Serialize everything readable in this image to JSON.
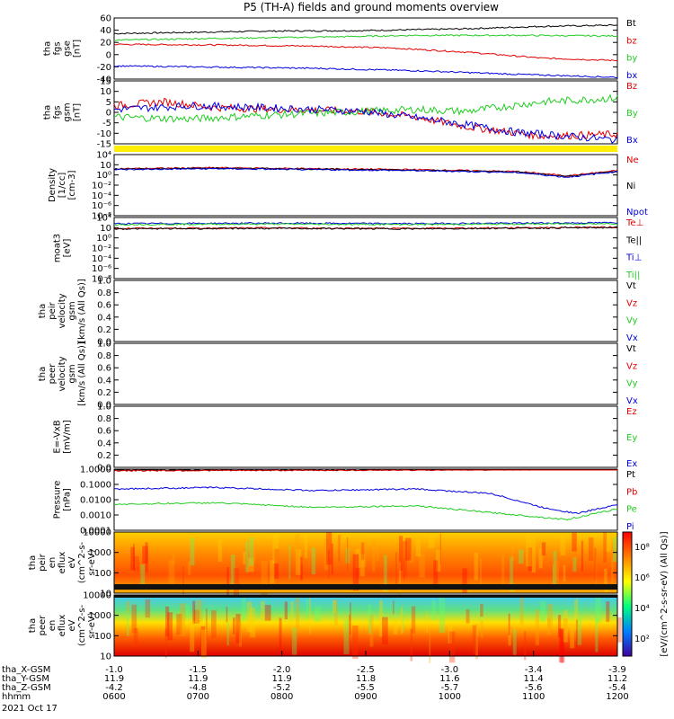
{
  "title": "P5 (TH-A) fields and ground moments overview",
  "colors": {
    "black": "#000000",
    "red": "#e00000",
    "green": "#22cc22",
    "blue": "#0000dd",
    "yellow": "#ffee00"
  },
  "chart_data": [
    {
      "type": "line",
      "panel": "fgs-gse",
      "ylabel": [
        "tha",
        "fgs",
        "gse",
        "[nT]"
      ],
      "yticks": [
        60,
        40,
        20,
        0,
        -20,
        -40
      ],
      "ylim": [
        -40,
        62
      ],
      "series": [
        {
          "name": "Bt",
          "color": "black",
          "points": [
            [
              0,
              36
            ],
            [
              0.15,
              38
            ],
            [
              0.3,
              40
            ],
            [
              0.5,
              41
            ],
            [
              0.7,
              44
            ],
            [
              0.85,
              48
            ],
            [
              1,
              50
            ]
          ]
        },
        {
          "name": "bz",
          "color": "red",
          "points": [
            [
              0,
              18
            ],
            [
              0.2,
              17
            ],
            [
              0.4,
              15
            ],
            [
              0.55,
              12
            ],
            [
              0.7,
              5
            ],
            [
              0.85,
              -5
            ],
            [
              1,
              -9
            ]
          ]
        },
        {
          "name": "by",
          "color": "green",
          "points": [
            [
              0,
              25
            ],
            [
              0.2,
              28
            ],
            [
              0.4,
              30
            ],
            [
              0.6,
              33
            ],
            [
              0.8,
              33
            ],
            [
              1,
              32
            ]
          ]
        },
        {
          "name": "bx",
          "color": "blue",
          "points": [
            [
              0,
              -18
            ],
            [
              0.2,
              -20
            ],
            [
              0.4,
              -22
            ],
            [
              0.6,
              -26
            ],
            [
              0.8,
              -32
            ],
            [
              1,
              -37
            ]
          ]
        }
      ]
    },
    {
      "type": "line",
      "panel": "fgs-gsm",
      "ylabel": [
        "tha",
        "fgs",
        "gsm",
        "[nT]"
      ],
      "yticks": [
        15,
        10,
        5,
        0,
        -5,
        -10,
        -15
      ],
      "ylim": [
        -17,
        16
      ],
      "series": [
        {
          "name": "Bz",
          "color": "red",
          "points": [
            [
              0,
              3
            ],
            [
              0.1,
              5
            ],
            [
              0.2,
              2
            ],
            [
              0.35,
              1
            ],
            [
              0.5,
              0
            ],
            [
              0.6,
              -3
            ],
            [
              0.7,
              -8
            ],
            [
              0.85,
              -13
            ],
            [
              1,
              -12
            ]
          ]
        },
        {
          "name": "By",
          "color": "green",
          "points": [
            [
              0,
              -3
            ],
            [
              0.15,
              -4
            ],
            [
              0.3,
              -2
            ],
            [
              0.5,
              0
            ],
            [
              0.6,
              1
            ],
            [
              0.7,
              0
            ],
            [
              0.85,
              5
            ],
            [
              1,
              7
            ]
          ]
        },
        {
          "name": "Bx",
          "color": "blue",
          "points": [
            [
              0,
              1
            ],
            [
              0.15,
              3
            ],
            [
              0.3,
              2
            ],
            [
              0.5,
              0
            ],
            [
              0.65,
              -5
            ],
            [
              0.8,
              -11
            ],
            [
              1,
              -15
            ]
          ]
        }
      ]
    },
    {
      "type": "line",
      "panel": "density",
      "ylog": true,
      "ylabel": [
        "Density",
        "[1/cc]",
        "[cm-3]"
      ],
      "yticks": [
        "10⁴",
        "10⁲",
        "10⁰",
        "10⁻²",
        "10⁻⁴",
        "10⁻⁶",
        "10⁻⁸"
      ],
      "ylim": [
        -9,
        4
      ],
      "series": [
        {
          "name": "Ne",
          "color": "red",
          "points": [
            [
              0,
              1.0
            ],
            [
              0.2,
              1.2
            ],
            [
              0.4,
              1.0
            ],
            [
              0.6,
              0.8
            ],
            [
              0.8,
              0.4
            ],
            [
              0.9,
              -0.5
            ],
            [
              1,
              0.6
            ]
          ]
        },
        {
          "name": "Ni",
          "color": "black",
          "points": [
            [
              0,
              0.9
            ],
            [
              0.2,
              1.1
            ],
            [
              0.4,
              0.9
            ],
            [
              0.6,
              0.7
            ],
            [
              0.8,
              0.3
            ],
            [
              0.9,
              -0.6
            ],
            [
              1,
              0.5
            ]
          ]
        },
        {
          "name": "Npot",
          "color": "blue",
          "points": [
            [
              0,
              0.8
            ],
            [
              0.2,
              1.0
            ],
            [
              0.4,
              0.8
            ],
            [
              0.6,
              0.6
            ],
            [
              0.8,
              0.2
            ],
            [
              0.9,
              -0.8
            ],
            [
              1,
              0.4
            ]
          ]
        }
      ]
    },
    {
      "type": "line",
      "panel": "temperature",
      "ylog": true,
      "ylabel": [
        "moat3",
        "[eV]"
      ],
      "yticks": [
        "10⁴",
        "10⁲",
        "10⁰",
        "10⁻²",
        "10⁻⁴",
        "10⁻⁶",
        "10⁻⁸"
      ],
      "ylim": [
        -9,
        5
      ],
      "series": [
        {
          "name": "Te⊥",
          "color": "red",
          "points": [
            [
              0,
              2.5
            ],
            [
              0.3,
              2.6
            ],
            [
              0.6,
              2.5
            ],
            [
              1,
              2.8
            ]
          ]
        },
        {
          "name": "Te||",
          "color": "black",
          "points": [
            [
              0,
              2.4
            ],
            [
              0.3,
              2.5
            ],
            [
              0.6,
              2.4
            ],
            [
              1,
              2.7
            ]
          ]
        },
        {
          "name": "Ti⊥",
          "color": "blue",
          "points": [
            [
              0,
              3.6
            ],
            [
              0.3,
              3.7
            ],
            [
              0.6,
              3.6
            ],
            [
              1,
              3.8
            ]
          ]
        },
        {
          "name": "Ti||",
          "color": "green",
          "points": [
            [
              0,
              3.4
            ],
            [
              0.3,
              3.5
            ],
            [
              0.6,
              3.4
            ],
            [
              1,
              3.6
            ]
          ]
        }
      ]
    },
    {
      "type": "line",
      "panel": "peir-velocity",
      "ylabel": [
        "tha",
        "peir",
        "velocity",
        "gsm",
        "[km/s (All Qs)]"
      ],
      "yticks": [
        "1.0",
        "0.8",
        "0.6",
        "0.4",
        "0.2",
        "0.0"
      ],
      "legend": [
        {
          "name": "Vt",
          "color": "black"
        },
        {
          "name": "Vz",
          "color": "red"
        },
        {
          "name": "Vy",
          "color": "green"
        },
        {
          "name": "Vx",
          "color": "blue"
        }
      ]
    },
    {
      "type": "line",
      "panel": "peer-velocity",
      "ylabel": [
        "tha",
        "peer",
        "velocity",
        "gsm",
        "[km/s (All Qs)]"
      ],
      "yticks": [
        "1.0",
        "0.8",
        "0.6",
        "0.4",
        "0.2",
        "0.0"
      ],
      "legend": [
        {
          "name": "Vt",
          "color": "black"
        },
        {
          "name": "Vz",
          "color": "red"
        },
        {
          "name": "Vy",
          "color": "green"
        },
        {
          "name": "Vx",
          "color": "blue"
        }
      ]
    },
    {
      "type": "line",
      "panel": "efield",
      "ylabel": [
        "E=-VxB",
        "[mV/m]"
      ],
      "yticks": [
        "1.0",
        "0.8",
        "0.6",
        "0.4",
        "0.2",
        "0.0"
      ],
      "legend": [
        {
          "name": "Ez",
          "color": "red"
        },
        {
          "name": "Ey",
          "color": "green"
        },
        {
          "name": "Ex",
          "color": "blue"
        }
      ]
    },
    {
      "type": "line",
      "panel": "pressure",
      "ylog": true,
      "ylabel": [
        "Pressure",
        "[nPa]"
      ],
      "yticks": [
        "1.0000",
        "0.1000",
        "0.0100",
        "0.0010",
        "0.0001"
      ],
      "ylim": [
        -4,
        0
      ],
      "series": [
        {
          "name": "Pt",
          "color": "black",
          "points": [
            [
              0,
              -0.05
            ],
            [
              0.5,
              -0.05
            ],
            [
              1,
              0
            ]
          ]
        },
        {
          "name": "Pb",
          "color": "red",
          "points": [
            [
              0,
              -0.1
            ],
            [
              0.3,
              -0.08
            ],
            [
              0.6,
              -0.05
            ],
            [
              1,
              0
            ]
          ]
        },
        {
          "name": "Pe",
          "color": "green",
          "points": [
            [
              0,
              -2.3
            ],
            [
              0.2,
              -2.2
            ],
            [
              0.4,
              -2.5
            ],
            [
              0.6,
              -2.4
            ],
            [
              0.8,
              -3.0
            ],
            [
              0.9,
              -3.3
            ],
            [
              1,
              -2.6
            ]
          ]
        },
        {
          "name": "Pi",
          "color": "blue",
          "points": [
            [
              0,
              -1.3
            ],
            [
              0.2,
              -1.2
            ],
            [
              0.4,
              -1.4
            ],
            [
              0.6,
              -1.3
            ],
            [
              0.75,
              -1.6
            ],
            [
              0.85,
              -2.5
            ],
            [
              0.92,
              -2.9
            ],
            [
              1,
              -2.3
            ]
          ]
        }
      ]
    },
    {
      "type": "heatmap",
      "panel": "peir-en-eflux",
      "ylabel": [
        "tha",
        "peir",
        "en",
        "eflux",
        "eV",
        "(cm^2-s-",
        "sr-eV)"
      ],
      "yticks": [
        "10000",
        "1000",
        "100",
        "10"
      ]
    },
    {
      "type": "heatmap",
      "panel": "peer-en-eflux",
      "ylabel": [
        "tha",
        "peer",
        "en",
        "eflux",
        "eV",
        "(cm^2-s-",
        "sr-eV)"
      ],
      "yticks": [
        "10000",
        "1000",
        "100",
        "10"
      ]
    }
  ],
  "colorbar": {
    "label": "[eV/(cm^2-s-sr-eV) (All Qs)]",
    "ticks": [
      "10⁸",
      "10⁶",
      "10⁴",
      "10²"
    ]
  },
  "xaxis": {
    "rows": [
      {
        "label": "tha_X-GSM",
        "values": [
          "-1.0",
          "-1.5",
          "-2.0",
          "-2.5",
          "-3.0",
          "-3.4",
          "-3.9"
        ]
      },
      {
        "label": "tha_Y-GSM",
        "values": [
          "11.9",
          "11.9",
          "11.9",
          "11.8",
          "11.6",
          "11.4",
          "11.2"
        ]
      },
      {
        "label": "tha_Z-GSM",
        "values": [
          "-4.2",
          "-4.8",
          "-5.2",
          "-5.5",
          "-5.7",
          "-5.6",
          "-5.4"
        ]
      },
      {
        "label": "hhmm",
        "values": [
          "0600",
          "0700",
          "0800",
          "0900",
          "1000",
          "1100",
          "1200"
        ]
      }
    ],
    "date": "2021 Oct 17"
  }
}
